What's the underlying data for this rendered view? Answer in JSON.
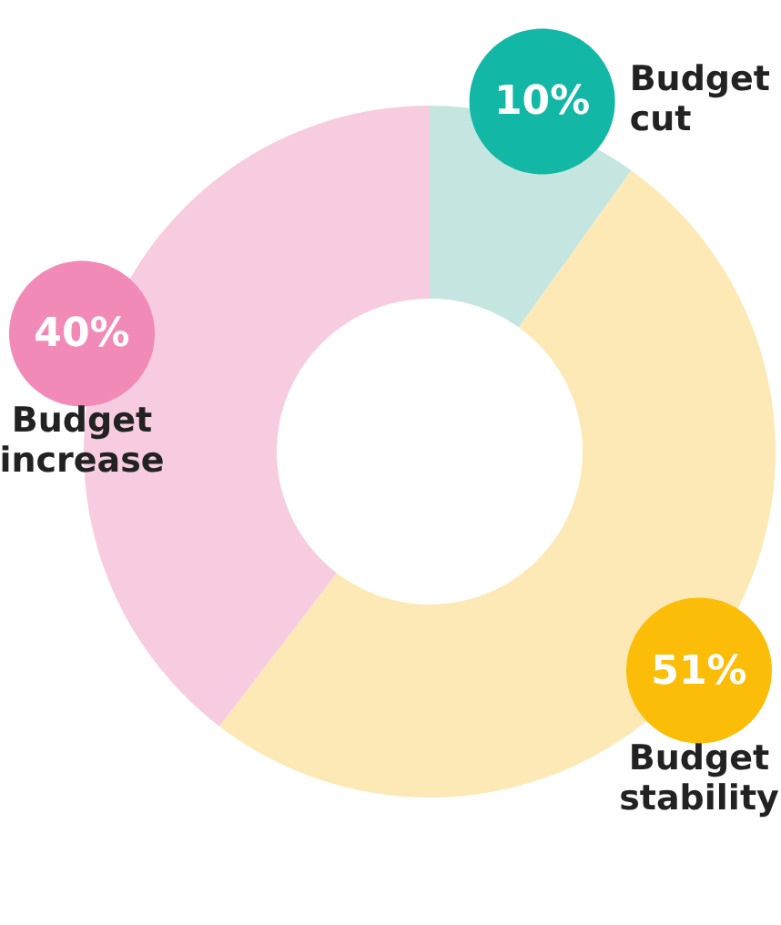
{
  "chart_data": {
    "type": "donut",
    "categories": [
      "Budget cut",
      "Budget stability",
      "Budget increase"
    ],
    "values": [
      10,
      51,
      40
    ],
    "colors": [
      "#c5e5e0",
      "#fde9b5",
      "#f7cce0"
    ],
    "value_labels": [
      "10%",
      "51%",
      "40%"
    ]
  }
}
